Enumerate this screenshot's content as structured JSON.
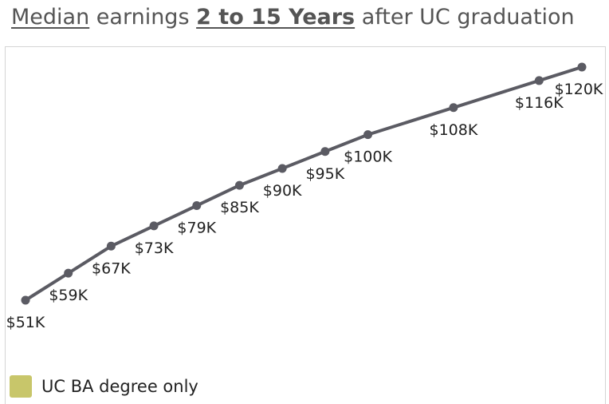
{
  "title": {
    "part1": "Median",
    "part2": " earnings ",
    "part3": "2 to 15 Years",
    "part4": " after UC graduation"
  },
  "chart_data": {
    "type": "line",
    "title": "Median earnings 2 to 15 Years after UC graduation",
    "series": [
      {
        "name": "UC BA degree only",
        "color": "#5b5b63",
        "values": [
          51,
          59,
          67,
          73,
          79,
          85,
          90,
          95,
          100,
          108,
          116,
          120
        ],
        "labels": [
          "$51K",
          "$59K",
          "$67K",
          "$73K",
          "$79K",
          "$85K",
          "$90K",
          "$95K",
          "$100K",
          "$108K",
          "$116K",
          "$120K"
        ]
      }
    ],
    "x": [
      2,
      3,
      4,
      5,
      6,
      7,
      8,
      9,
      10,
      12,
      14,
      15
    ],
    "xlim": [
      2,
      15
    ],
    "ylim": [
      51,
      120
    ],
    "grid": false,
    "legend": "bottom-left"
  },
  "legend": {
    "color": "#c8c66a",
    "label": "UC BA degree only"
  }
}
